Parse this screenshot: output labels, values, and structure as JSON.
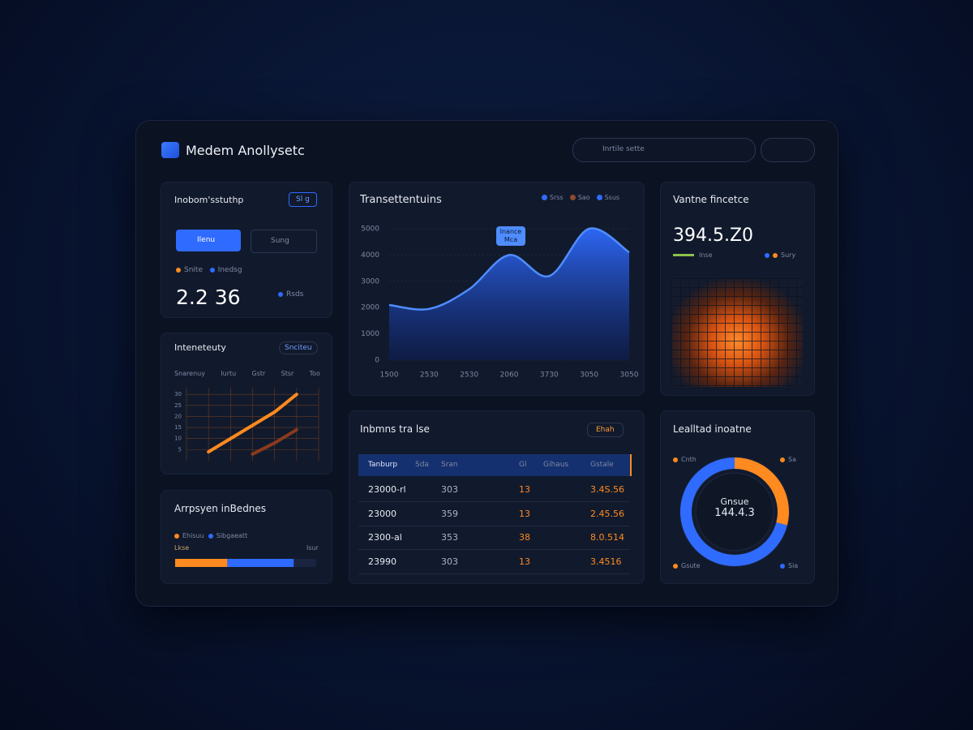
{
  "header": {
    "title": "Medem Anollysetc",
    "search": "Inrtile sette"
  },
  "overview": {
    "title": "Inobom'sstuthp",
    "badge": "Sl g",
    "buttons": [
      "Ilenu",
      "Sung"
    ],
    "legend": [
      "Snite",
      "Inedsg"
    ],
    "value": "2.2 36",
    "note": "Rsds"
  },
  "intensity": {
    "title": "Inteneteuty",
    "badge": "Snciteu",
    "columns": [
      "Snarenuy",
      "Iurtu",
      "Gstr",
      "Stsr",
      "Too"
    ],
    "chart": {
      "type": "line",
      "categories": [
        null,
        null,
        null,
        null,
        null,
        null,
        null
      ],
      "ylim": [
        0,
        33
      ],
      "yticks": [
        5,
        10,
        15,
        20,
        25,
        30
      ],
      "grid": true,
      "series": [
        {
          "color": "#ff8a1f",
          "values": [
            null,
            4,
            10,
            16,
            22,
            30,
            null
          ]
        },
        {
          "color": "#8a3a1c",
          "values": [
            null,
            null,
            null,
            3,
            8,
            14,
            null
          ]
        }
      ]
    }
  },
  "progress": {
    "title": "Arrpsyen inBednes",
    "legend": [
      "Ehisuu",
      "Sibgaeatt"
    ],
    "labels": [
      "Lkse",
      "Isur"
    ],
    "chart": {
      "type": "stacked-bar",
      "xlim": [
        0,
        100
      ],
      "series": [
        {
          "color": "#ff8a1f",
          "values": [
            37
          ]
        },
        {
          "color": "#2f6bff",
          "values": [
            47
          ]
        }
      ]
    }
  },
  "transactions": {
    "title": "Transettentuins",
    "legend": [
      {
        "name": "Srss",
        "color": "#2f6bff"
      },
      {
        "name": "Sao",
        "color": "#8a4a30"
      },
      {
        "name": "Ssus",
        "color": "#2f6bff"
      }
    ],
    "tooltip": [
      "Inance",
      "Mca"
    ],
    "chart": {
      "type": "area",
      "categories": [
        "1500",
        "2530",
        "2530",
        "2060",
        "3730",
        "3050",
        "3050"
      ],
      "values": [
        2100,
        1950,
        2700,
        4000,
        3200,
        5000,
        4100
      ],
      "ylim": [
        0,
        5000
      ],
      "yticks": [
        0,
        1000,
        2000,
        3000,
        4000,
        5000
      ],
      "color": "#2f6bff",
      "grid": true
    }
  },
  "volume": {
    "title": "Vantne fincetce",
    "value": "394.5.Z0",
    "legend": [
      "Inse",
      "Sury"
    ]
  },
  "table": {
    "title": "Inbmns tra lse",
    "button": "Ehah",
    "header": [
      "Tanburp",
      "Sda",
      "Sran",
      "Gl",
      "Gihaus",
      "Gstale"
    ],
    "rows": [
      [
        "23000-rl",
        "303",
        "13",
        "3.4S.56"
      ],
      [
        "23000",
        "359",
        "13",
        "2.45.56"
      ],
      [
        "2300-al",
        "353",
        "38",
        "8.0.514"
      ],
      [
        "23990",
        "303",
        "13",
        "3.4516"
      ]
    ]
  },
  "donut": {
    "title": "Lealltad inoatne",
    "center": [
      "Gnsue",
      "144.4.3"
    ],
    "legend": [
      "Cnth",
      "Sa",
      "Gsute",
      "Sia"
    ],
    "chart": {
      "type": "donut",
      "values": [
        29,
        71
      ],
      "colors": [
        "#ff8a1f",
        "#2f6bff"
      ]
    }
  }
}
